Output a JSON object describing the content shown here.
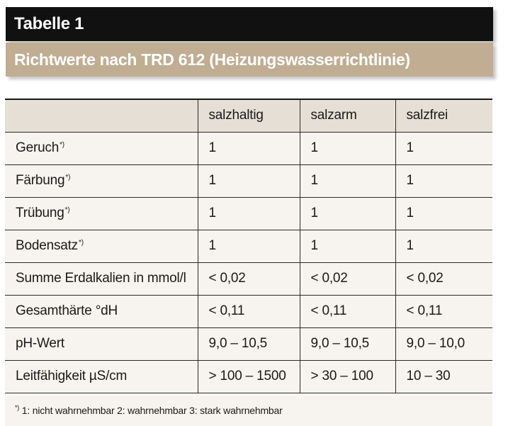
{
  "header": {
    "table_label": "Tabelle 1",
    "subtitle": "Richtwerte nach TRD 612 (Heizungswasserrichtlinie)"
  },
  "table": {
    "columns": [
      "",
      "salzhaltig",
      "salzarm",
      "salzfrei"
    ],
    "rows": [
      {
        "label": "Geruch",
        "footnote_mark": "*)",
        "values": [
          "1",
          "1",
          "1"
        ]
      },
      {
        "label": "Färbung",
        "footnote_mark": "*)",
        "values": [
          "1",
          "1",
          "1"
        ]
      },
      {
        "label": "Trübung",
        "footnote_mark": "*)",
        "values": [
          "1",
          "1",
          "1"
        ]
      },
      {
        "label": "Bodensatz",
        "footnote_mark": "*)",
        "values": [
          "1",
          "1",
          "1"
        ]
      },
      {
        "label": "Summe Erdalkalien in mmol/l",
        "footnote_mark": "",
        "values": [
          "< 0,02",
          "< 0,02",
          "< 0,02"
        ]
      },
      {
        "label": "Gesamthärte °dH",
        "footnote_mark": "",
        "values": [
          "< 0,11",
          "< 0,11",
          "< 0,11"
        ]
      },
      {
        "label": "pH-Wert",
        "footnote_mark": "",
        "values": [
          "9,0 – 10,5",
          "9,0 – 10,5",
          "9,0 – 10,0"
        ]
      },
      {
        "label": "Leitfähigkeit µS/cm",
        "footnote_mark": "",
        "values": [
          "> 100 – 1500",
          "> 30 – 100",
          "10 – 30"
        ]
      }
    ]
  },
  "footnote": {
    "mark": "*)",
    "text": " 1: nicht wahrnehmbar 2: wahrnehmbar 3: stark wahrnehmbar"
  }
}
